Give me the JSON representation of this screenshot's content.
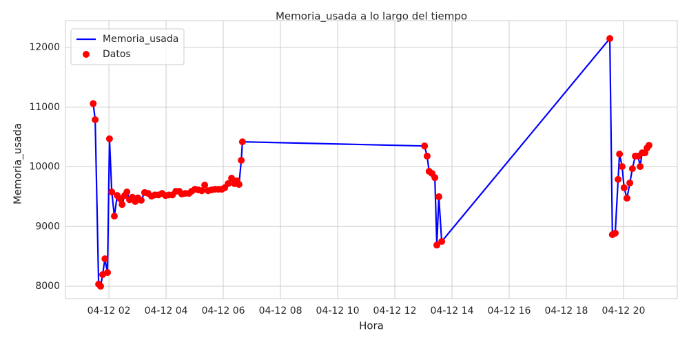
{
  "chart_data": {
    "type": "line",
    "title": "Memoria_usada a lo largo del tiempo",
    "x_label": "Hora",
    "y_label": "Memoria_usada",
    "x": [
      1.45,
      1.52,
      1.64,
      1.71,
      1.78,
      1.86,
      1.95,
      2.02,
      2.1,
      2.19,
      2.29,
      2.39,
      2.46,
      2.55,
      2.63,
      2.72,
      2.82,
      2.92,
      3.01,
      3.13,
      3.25,
      3.37,
      3.49,
      3.61,
      3.73,
      3.86,
      3.98,
      4.1,
      4.22,
      4.34,
      4.46,
      4.55,
      4.67,
      4.8,
      4.89,
      5.01,
      5.13,
      5.25,
      5.35,
      5.47,
      5.59,
      5.71,
      5.83,
      5.95,
      6.05,
      6.17,
      6.29,
      6.39,
      6.48,
      6.55,
      6.63,
      6.67,
      13.04,
      13.13,
      13.2,
      13.3,
      13.4,
      13.47,
      13.54,
      13.64,
      19.52,
      19.61,
      19.71,
      19.81,
      19.86,
      19.95,
      20.02,
      20.12,
      20.22,
      20.31,
      20.41,
      20.51,
      20.58,
      20.65,
      20.75,
      20.82,
      20.89
    ],
    "series": [
      {
        "name": "Memoria_usada",
        "color": "#0000ff",
        "mode": "line",
        "values": [
          11060,
          10790,
          8035,
          8000,
          8195,
          8460,
          8230,
          10470,
          9580,
          9175,
          9520,
          9465,
          9370,
          9520,
          9580,
          9450,
          9490,
          9420,
          9480,
          9440,
          9570,
          9555,
          9510,
          9530,
          9530,
          9555,
          9520,
          9530,
          9530,
          9590,
          9590,
          9545,
          9555,
          9555,
          9590,
          9625,
          9615,
          9600,
          9695,
          9600,
          9615,
          9625,
          9625,
          9625,
          9650,
          9720,
          9810,
          9720,
          9765,
          9705,
          10110,
          10420,
          10350,
          10180,
          9925,
          9890,
          9820,
          8690,
          9500,
          8750,
          12150,
          8865,
          8890,
          9790,
          10215,
          10005,
          9650,
          9475,
          9730,
          9970,
          10180,
          10180,
          10005,
          10235,
          10235,
          10315,
          10360
        ]
      },
      {
        "name": "Datos",
        "color": "#ff0000",
        "mode": "scatter",
        "values": [
          11060,
          10790,
          8035,
          8000,
          8195,
          8460,
          8230,
          10470,
          9580,
          9175,
          9520,
          9465,
          9370,
          9520,
          9580,
          9450,
          9490,
          9420,
          9480,
          9440,
          9570,
          9555,
          9510,
          9530,
          9530,
          9555,
          9520,
          9530,
          9530,
          9590,
          9590,
          9545,
          9555,
          9555,
          9590,
          9625,
          9615,
          9600,
          9695,
          9600,
          9615,
          9625,
          9625,
          9625,
          9650,
          9720,
          9810,
          9720,
          9765,
          9705,
          10110,
          10420,
          10350,
          10180,
          9925,
          9890,
          9820,
          8690,
          9500,
          8750,
          12150,
          8865,
          8890,
          9790,
          10215,
          10005,
          9650,
          9475,
          9730,
          9970,
          10180,
          10180,
          10005,
          10235,
          10235,
          10315,
          10360
        ]
      }
    ],
    "xlim": [
      0.48,
      21.88
    ],
    "xticks": [
      {
        "value": 2,
        "label": "04-12 02"
      },
      {
        "value": 4,
        "label": "04-12 04"
      },
      {
        "value": 6,
        "label": "04-12 06"
      },
      {
        "value": 8,
        "label": "04-12 08"
      },
      {
        "value": 10,
        "label": "04-12 10"
      },
      {
        "value": 12,
        "label": "04-12 12"
      },
      {
        "value": 14,
        "label": "04-12 14"
      },
      {
        "value": 16,
        "label": "04-12 16"
      },
      {
        "value": 18,
        "label": "04-12 18"
      },
      {
        "value": 20,
        "label": "04-12 20"
      }
    ],
    "ylim": [
      7793,
      12450
    ],
    "yticks": [
      8000,
      9000,
      10000,
      11000,
      12000
    ],
    "grid": true,
    "legend": "upper-left"
  }
}
